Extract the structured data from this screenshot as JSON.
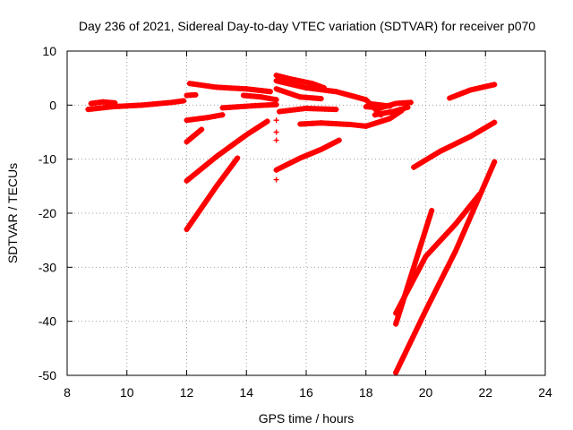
{
  "chart_data": {
    "type": "scatter",
    "title": "Day 236 of 2021, Sidereal Day-to-day VTEC variation (SDTVAR) for receiver p070",
    "xlabel": "GPS time / hours",
    "ylabel": "SDTVAR / TECUs",
    "xlim": [
      8,
      24
    ],
    "ylim": [
      -50,
      10
    ],
    "xticks": [
      "8",
      "10",
      "12",
      "14",
      "16",
      "18",
      "20",
      "22",
      "24"
    ],
    "yticks": [
      "10",
      "0",
      "-10",
      "-20",
      "-30",
      "-40",
      "-50"
    ],
    "grid": true,
    "marker": "+",
    "color": "#ff0000",
    "tracks": [
      {
        "x": [
          8.7,
          9.5,
          10.5,
          11.5,
          11.9
        ],
        "y": [
          -0.8,
          -0.3,
          0.0,
          0.5,
          0.8
        ]
      },
      {
        "x": [
          8.8,
          9.2,
          9.6
        ],
        "y": [
          0.3,
          0.6,
          0.4
        ]
      },
      {
        "x": [
          12.0,
          12.3
        ],
        "y": [
          1.8,
          1.9
        ]
      },
      {
        "x": [
          12.1,
          13.0,
          14.0,
          14.8
        ],
        "y": [
          4.0,
          3.3,
          3.0,
          2.5
        ]
      },
      {
        "x": [
          12.0,
          12.7,
          13.2
        ],
        "y": [
          -2.8,
          -2.3,
          -1.8
        ]
      },
      {
        "x": [
          12.0,
          12.5
        ],
        "y": [
          -6.8,
          -4.5
        ]
      },
      {
        "x": [
          12.0,
          13.0,
          14.0,
          14.7
        ],
        "y": [
          -14.0,
          -9.5,
          -5.5,
          -3.0
        ]
      },
      {
        "x": [
          12.0,
          13.0,
          13.7
        ],
        "y": [
          -23.0,
          -15.0,
          -9.8
        ]
      },
      {
        "x": [
          13.9,
          14.5,
          15.0
        ],
        "y": [
          1.8,
          1.5,
          1.0
        ]
      },
      {
        "x": [
          13.2,
          14.3,
          15.0
        ],
        "y": [
          -0.5,
          -0.1,
          0.1
        ]
      },
      {
        "x": [
          15.0,
          15.5,
          16.2,
          16.6
        ],
        "y": [
          5.5,
          4.8,
          4.0,
          3.2
        ]
      },
      {
        "x": [
          15.0,
          16.0,
          17.0,
          18.0,
          18.5
        ],
        "y": [
          4.5,
          3.2,
          2.5,
          1.0,
          -1.8
        ]
      },
      {
        "x": [
          15.0,
          15.8,
          16.5
        ],
        "y": [
          3.0,
          1.5,
          1.2
        ]
      },
      {
        "x": [
          15.1,
          16.0,
          17.0
        ],
        "y": [
          -1.2,
          -0.6,
          -0.8
        ]
      },
      {
        "x": [
          15.8,
          16.5,
          17.5,
          18.0,
          18.8,
          19.2
        ],
        "y": [
          -3.5,
          -3.3,
          -3.6,
          -3.9,
          -2.5,
          -1.0
        ]
      },
      {
        "x": [
          15.0,
          15.8,
          16.5,
          17.1
        ],
        "y": [
          -12.0,
          -9.8,
          -8.2,
          -6.5
        ]
      },
      {
        "x": [
          18.0,
          18.5,
          19.0,
          19.5
        ],
        "y": [
          -0.3,
          -0.5,
          0.3,
          0.5
        ]
      },
      {
        "x": [
          18.3,
          18.9,
          19.4
        ],
        "y": [
          -1.8,
          -1.2,
          -0.4
        ]
      },
      {
        "x": [
          18.2,
          18.8
        ],
        "y": [
          0.2,
          -0.2
        ]
      },
      {
        "x": [
          19.6,
          20.5,
          21.5,
          22.3
        ],
        "y": [
          -11.5,
          -8.5,
          -5.8,
          -3.2
        ]
      },
      {
        "x": [
          20.8,
          21.5,
          22.3
        ],
        "y": [
          1.3,
          2.8,
          3.8
        ]
      },
      {
        "x": [
          19.0,
          19.6,
          20.2
        ],
        "y": [
          -40.5,
          -30.0,
          -19.5
        ]
      },
      {
        "x": [
          19.0,
          20.0,
          21.0,
          21.8
        ],
        "y": [
          -38.5,
          -28.0,
          -22.0,
          -16.5
        ]
      },
      {
        "x": [
          19.0,
          20.0,
          21.0,
          22.3
        ],
        "y": [
          -49.5,
          -38.0,
          -27.0,
          -10.5
        ]
      }
    ],
    "isolated_points": [
      {
        "x": [
          15.0,
          15.0,
          15.0,
          15.0
        ],
        "y": [
          -2.8,
          -5.0,
          -6.5,
          -13.8
        ]
      }
    ]
  }
}
